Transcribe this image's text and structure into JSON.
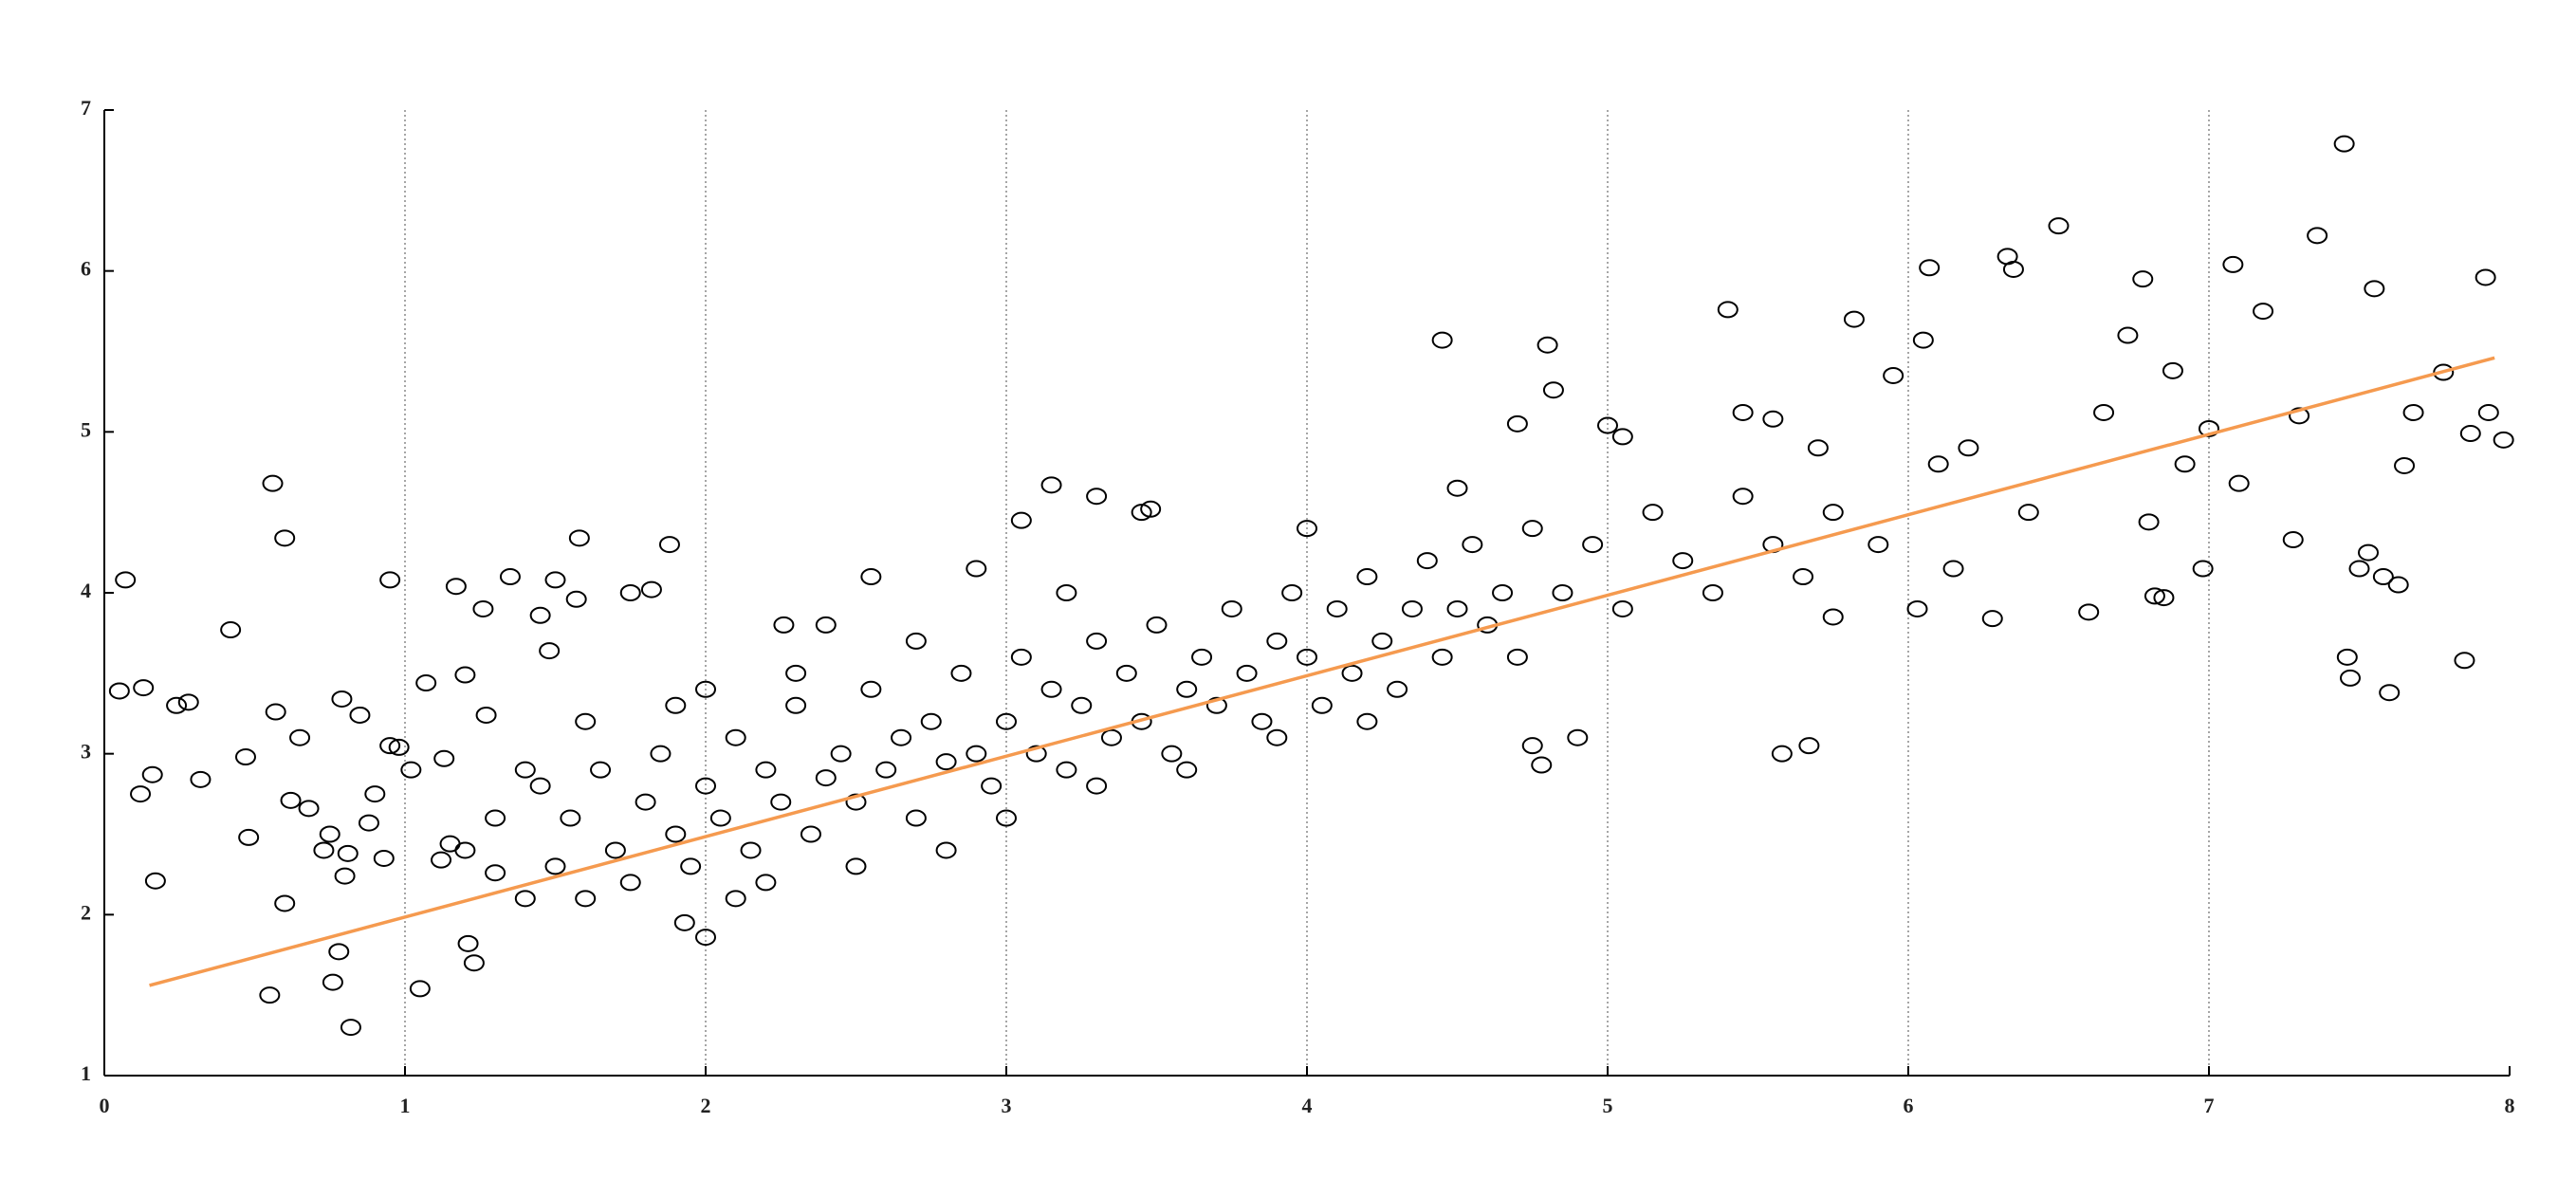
{
  "chart_data": {
    "type": "scatter",
    "x": [
      0.07,
      0.05,
      0.13,
      0.12,
      0.16,
      0.17,
      0.24,
      0.28,
      0.32,
      0.42,
      0.47,
      0.48,
      0.55,
      0.56,
      0.57,
      0.6,
      0.6,
      0.62,
      0.65,
      0.68,
      0.73,
      0.75,
      0.76,
      0.78,
      0.79,
      0.8,
      0.82,
      0.81,
      0.85,
      0.88,
      0.9,
      0.93,
      0.95,
      0.95,
      0.98,
      1.02,
      1.05,
      1.07,
      1.12,
      1.13,
      1.15,
      1.17,
      1.2,
      1.21,
      1.23,
      1.26,
      1.27,
      1.3,
      1.35,
      1.4,
      1.45,
      1.48,
      1.5,
      1.57,
      1.58,
      1.75,
      1.82,
      1.88,
      1.93,
      2.0,
      2.1,
      2.26,
      2.4,
      2.55,
      2.9,
      3.05,
      3.15,
      3.3,
      3.45,
      3.48,
      4.0,
      4.45,
      4.5,
      4.8,
      4.82,
      4.7,
      4.75,
      4.78,
      4.9,
      5.0,
      5.05,
      5.4,
      5.45,
      5.55,
      5.58,
      5.67,
      5.7,
      5.75,
      5.82,
      5.95,
      6.05,
      6.07,
      6.03,
      6.15,
      6.28,
      6.33,
      6.35,
      6.5,
      6.6,
      6.65,
      6.73,
      6.78,
      6.8,
      6.82,
      6.85,
      6.88,
      6.92,
      6.98,
      7.0,
      7.08,
      7.1,
      7.18,
      7.28,
      7.3,
      7.36,
      7.45,
      7.46,
      7.47,
      7.5,
      7.53,
      7.55,
      7.58,
      7.6,
      7.63,
      7.65,
      7.68,
      7.78,
      7.85,
      7.87,
      7.92,
      7.93,
      7.98,
      1.5,
      1.55,
      1.6,
      1.65,
      1.7,
      1.75,
      1.8,
      1.85,
      1.9,
      1.95,
      2.0,
      2.05,
      2.1,
      2.15,
      2.2,
      2.25,
      2.3,
      2.35,
      2.4,
      2.45,
      2.5,
      2.55,
      2.6,
      2.65,
      2.7,
      2.75,
      2.8,
      2.85,
      2.9,
      2.95,
      3.0,
      3.05,
      3.1,
      3.15,
      3.2,
      3.25,
      3.3,
      3.35,
      3.4,
      3.45,
      3.5,
      3.55,
      3.6,
      3.65,
      3.7,
      3.75,
      3.8,
      3.85,
      3.9,
      3.95,
      4.0,
      4.05,
      4.1,
      4.15,
      4.2,
      4.25,
      4.3,
      4.35,
      4.4,
      4.45,
      4.5,
      4.55,
      4.6,
      4.65,
      4.7,
      4.75,
      4.85,
      4.95,
      5.05,
      5.15,
      5.25,
      5.35,
      5.45,
      5.55,
      5.65,
      5.75,
      5.9,
      6.1,
      6.2,
      6.4,
      1.3,
      1.4,
      1.45,
      1.2,
      2.0,
      2.2,
      2.5,
      2.8,
      3.0,
      3.3,
      3.6,
      3.9,
      4.2,
      3.2,
      2.7,
      2.3,
      1.9,
      1.6
    ],
    "values": [
      4.08,
      3.39,
      3.41,
      2.75,
      2.87,
      2.21,
      3.3,
      3.32,
      2.84,
      3.77,
      2.98,
      2.48,
      1.5,
      4.68,
      3.26,
      4.34,
      2.07,
      2.71,
      3.1,
      2.66,
      2.4,
      2.5,
      1.58,
      1.77,
      3.34,
      2.24,
      1.3,
      2.38,
      3.24,
      2.57,
      2.75,
      2.35,
      4.08,
      3.05,
      3.04,
      2.9,
      1.54,
      3.44,
      2.34,
      2.97,
      2.44,
      4.04,
      3.49,
      1.82,
      1.7,
      3.9,
      3.24,
      2.26,
      4.1,
      2.9,
      3.86,
      3.64,
      4.08,
      3.96,
      4.34,
      4.0,
      4.02,
      4.3,
      1.95,
      1.86,
      2.1,
      3.8,
      3.8,
      4.1,
      4.15,
      4.45,
      4.67,
      4.6,
      4.5,
      4.52,
      4.4,
      5.57,
      4.65,
      5.54,
      5.26,
      5.05,
      3.05,
      2.93,
      3.1,
      5.04,
      4.97,
      5.76,
      5.12,
      5.08,
      3.0,
      3.05,
      4.9,
      3.85,
      5.7,
      5.35,
      5.57,
      6.02,
      3.9,
      4.15,
      3.84,
      6.09,
      6.01,
      6.28,
      3.88,
      5.12,
      5.6,
      5.95,
      4.44,
      3.98,
      3.97,
      5.38,
      4.8,
      4.15,
      5.02,
      6.04,
      4.68,
      5.75,
      4.33,
      5.1,
      6.22,
      6.79,
      3.6,
      3.47,
      4.15,
      4.25,
      5.89,
      4.1,
      3.38,
      4.05,
      4.79,
      5.12,
      5.37,
      3.58,
      4.99,
      5.96,
      5.12,
      4.95,
      2.3,
      2.6,
      2.1,
      2.9,
      2.4,
      2.2,
      2.7,
      3.0,
      2.5,
      2.3,
      2.8,
      2.6,
      3.1,
      2.4,
      2.9,
      2.7,
      3.3,
      2.5,
      2.85,
      3.0,
      2.7,
      3.4,
      2.9,
      3.1,
      2.6,
      3.2,
      2.95,
      3.5,
      3.0,
      2.8,
      3.2,
      3.6,
      3.0,
      3.4,
      2.9,
      3.3,
      3.7,
      3.1,
      3.5,
      3.2,
      3.8,
      3.0,
      3.4,
      3.6,
      3.3,
      3.9,
      3.5,
      3.2,
      3.7,
      4.0,
      3.6,
      3.3,
      3.9,
      3.5,
      4.1,
      3.7,
      3.4,
      3.9,
      4.2,
      3.6,
      3.9,
      4.3,
      3.8,
      4.0,
      3.6,
      4.4,
      4.0,
      4.3,
      3.9,
      4.5,
      4.2,
      4.0,
      4.6,
      4.3,
      4.1,
      4.5,
      4.3,
      4.8,
      4.9,
      4.5,
      2.6,
      2.1,
      2.8,
      2.4,
      3.4,
      2.2,
      2.3,
      2.4,
      2.6,
      2.8,
      2.9,
      3.1,
      3.2,
      4.0,
      3.7,
      3.5,
      3.3,
      3.2
    ],
    "color": "#000000",
    "fit": {
      "x": [
        0.15,
        7.95
      ],
      "values": [
        1.56,
        5.46
      ],
      "color": "#f59a4f"
    },
    "xlim": [
      0,
      8
    ],
    "xticks": [
      0,
      1,
      2,
      3,
      4,
      5,
      6,
      7,
      8
    ],
    "ylim": [
      1,
      7
    ],
    "yticks": [
      1,
      2,
      3,
      4,
      5,
      6,
      7
    ],
    "grid": "x"
  }
}
